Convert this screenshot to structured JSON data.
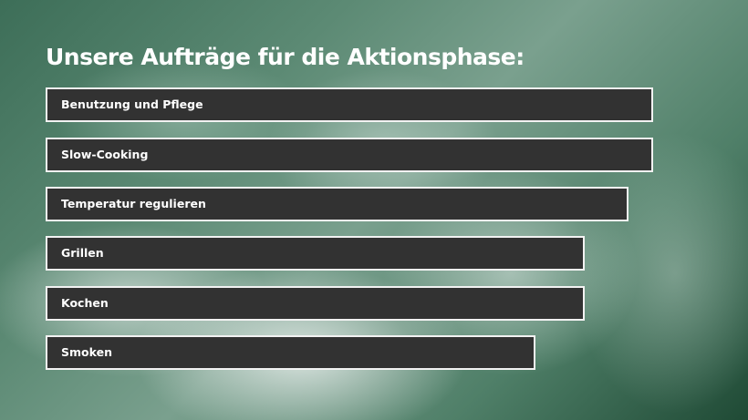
{
  "slide": {
    "title": "Unsere Aufträge für die Aktionsphase:",
    "items": [
      {
        "label": "Benutzung und Pflege"
      },
      {
        "label": "Slow-Cooking"
      },
      {
        "label": "Temperatur regulieren"
      },
      {
        "label": "Grillen"
      },
      {
        "label": "Kochen"
      },
      {
        "label": "Smoken"
      }
    ],
    "colors": {
      "item_background": "#323232",
      "item_border": "#f2f2f2",
      "text": "#ffffff",
      "background": "#4f7f68"
    }
  }
}
